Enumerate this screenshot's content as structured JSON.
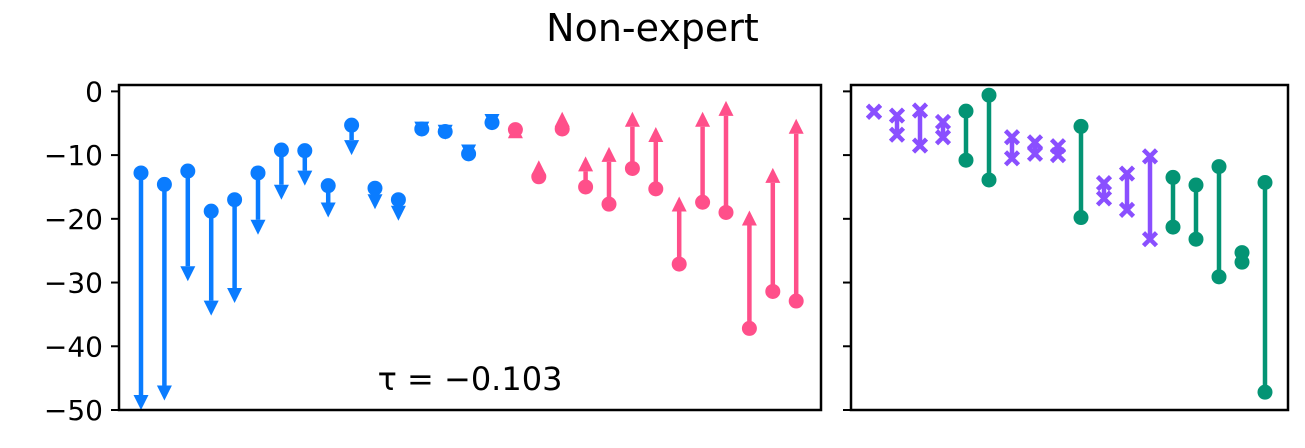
{
  "chart_data": {
    "type": "line",
    "title": "Non-expert",
    "ylim": [
      -50,
      1
    ],
    "y_ticks": [
      0,
      -10,
      -20,
      -30,
      -40,
      -50
    ],
    "y_tick_labels": [
      "0",
      "−10",
      "−20",
      "−30",
      "−40",
      "−50"
    ],
    "colors": {
      "down": "#0a7cff",
      "up": "#ff4f8a",
      "purple": "#8a4fff",
      "green": "#049474"
    },
    "panels": [
      {
        "name": "left",
        "annotation": "τ = −0.103",
        "series": [
          {
            "from": -12.8,
            "to": -50,
            "dir": "down"
          },
          {
            "from": -14.6,
            "to": -48.5,
            "dir": "down"
          },
          {
            "from": -12.5,
            "to": -29.8,
            "dir": "down"
          },
          {
            "from": -18.8,
            "to": -35.2,
            "dir": "down"
          },
          {
            "from": -17.0,
            "to": -33.2,
            "dir": "down"
          },
          {
            "from": -12.8,
            "to": -22.5,
            "dir": "down"
          },
          {
            "from": -9.2,
            "to": -17.0,
            "dir": "down"
          },
          {
            "from": -9.3,
            "to": -14.8,
            "dir": "down"
          },
          {
            "from": -14.8,
            "to": -19.8,
            "dir": "down"
          },
          {
            "from": -5.3,
            "to": -10.0,
            "dir": "down"
          },
          {
            "from": -15.2,
            "to": -18.5,
            "dir": "down"
          },
          {
            "from": -17.0,
            "to": -20.3,
            "dir": "down"
          },
          {
            "from": -5.9,
            "to": -7.1,
            "dir": "down"
          },
          {
            "from": -6.3,
            "to": -7.6,
            "dir": "down"
          },
          {
            "from": -9.8,
            "to": -10.7,
            "dir": "down"
          },
          {
            "from": -4.9,
            "to": -5.9,
            "dir": "down"
          },
          {
            "from": -6.0,
            "to": -5.0,
            "dir": "up"
          },
          {
            "from": -13.4,
            "to": -10.8,
            "dir": "up"
          },
          {
            "from": -5.9,
            "to": -3.2,
            "dir": "up"
          },
          {
            "from": -15.0,
            "to": -10.2,
            "dir": "up"
          },
          {
            "from": -17.7,
            "to": -8.7,
            "dir": "up"
          },
          {
            "from": -12.1,
            "to": -3.2,
            "dir": "up"
          },
          {
            "from": -15.3,
            "to": -5.6,
            "dir": "up"
          },
          {
            "from": -27.1,
            "to": -16.5,
            "dir": "up"
          },
          {
            "from": -17.4,
            "to": -3.2,
            "dir": "up"
          },
          {
            "from": -19.0,
            "to": -1.5,
            "dir": "up"
          },
          {
            "from": -37.2,
            "to": -18.7,
            "dir": "up"
          },
          {
            "from": -31.4,
            "to": -12.0,
            "dir": "up"
          },
          {
            "from": -32.9,
            "to": -4.3,
            "dir": "up"
          }
        ]
      },
      {
        "name": "right",
        "series": [
          {
            "a": -3.2,
            "b": -3.2,
            "kind": "purple"
          },
          {
            "a": -3.8,
            "b": -6.8,
            "kind": "purple"
          },
          {
            "a": -3.0,
            "b": -8.5,
            "kind": "purple"
          },
          {
            "a": -4.8,
            "b": -7.2,
            "kind": "purple"
          },
          {
            "a": -3.1,
            "b": -10.8,
            "kind": "green"
          },
          {
            "a": -0.6,
            "b": -13.9,
            "kind": "green"
          },
          {
            "a": -7.2,
            "b": -10.5,
            "kind": "purple"
          },
          {
            "a": -8.0,
            "b": -9.8,
            "kind": "purple"
          },
          {
            "a": -8.6,
            "b": -10.0,
            "kind": "purple"
          },
          {
            "a": -5.5,
            "b": -19.8,
            "kind": "green"
          },
          {
            "a": -14.4,
            "b": -16.8,
            "kind": "purple"
          },
          {
            "a": -12.9,
            "b": -18.6,
            "kind": "purple"
          },
          {
            "a": -10.2,
            "b": -23.2,
            "kind": "purple"
          },
          {
            "a": -13.5,
            "b": -21.3,
            "kind": "green"
          },
          {
            "a": -14.7,
            "b": -23.2,
            "kind": "green"
          },
          {
            "a": -11.8,
            "b": -29.1,
            "kind": "green"
          },
          {
            "a": -25.3,
            "b": -26.8,
            "kind": "green"
          },
          {
            "a": -14.3,
            "b": -47.2,
            "kind": "green"
          }
        ]
      }
    ]
  }
}
